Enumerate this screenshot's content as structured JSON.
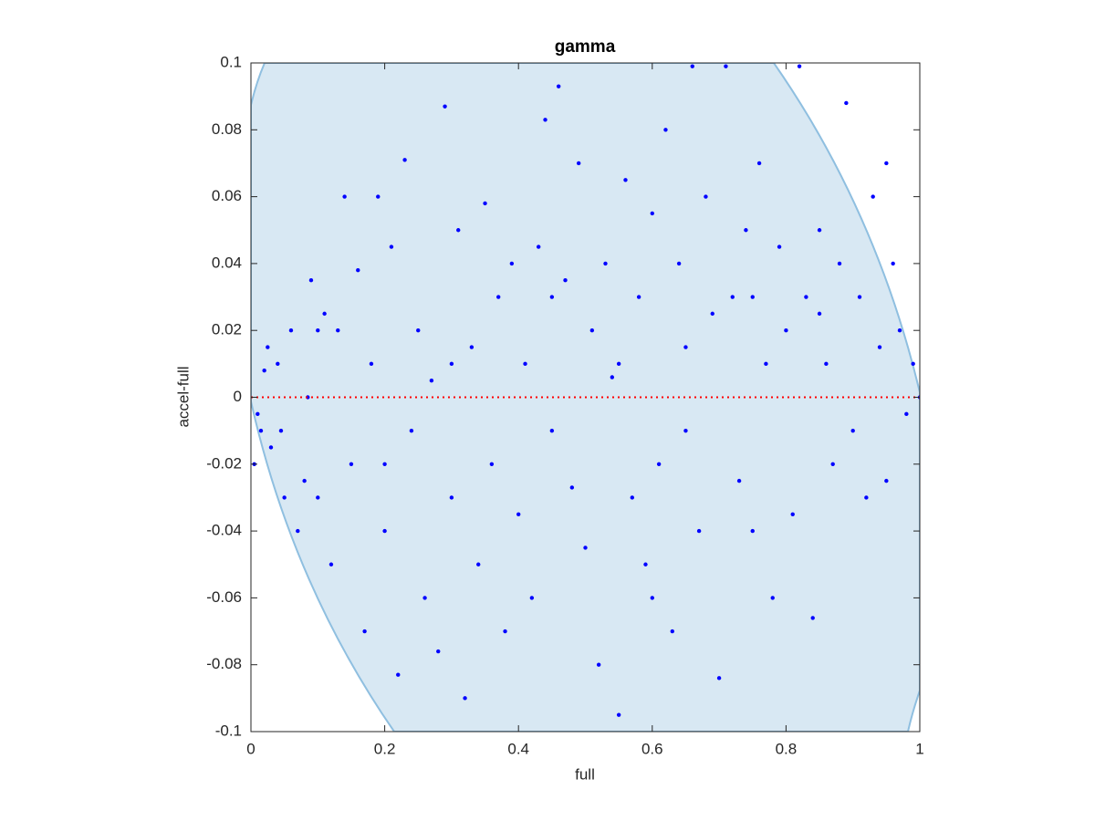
{
  "chart_data": {
    "type": "scatter",
    "title": "gamma",
    "x_label": "full",
    "y_label": "accel-full",
    "color": "#0000ff",
    "hline": 0,
    "hline_color": "#ff0000",
    "region_color": "#d8e8f3",
    "region_edge": "#8fbfe0",
    "xlim": [
      0,
      1
    ],
    "ylim": [
      -0.1,
      0.1
    ],
    "xticks": [
      0,
      0.2,
      0.4,
      0.6,
      0.8,
      1
    ],
    "yticks": [
      -0.1,
      -0.08,
      -0.06,
      -0.04,
      -0.02,
      0,
      0.02,
      0.04,
      0.06,
      0.08,
      0.1
    ],
    "x": [
      0.01,
      0.02,
      0.015,
      0.03,
      0.04,
      0.05,
      0.06,
      0.07,
      0.08,
      0.09,
      0.1,
      0.11,
      0.12,
      0.13,
      0.14,
      0.15,
      0.16,
      0.17,
      0.18,
      0.19,
      0.2,
      0.21,
      0.22,
      0.23,
      0.24,
      0.25,
      0.26,
      0.27,
      0.28,
      0.29,
      0.3,
      0.31,
      0.32,
      0.33,
      0.34,
      0.35,
      0.36,
      0.37,
      0.38,
      0.39,
      0.4,
      0.41,
      0.42,
      0.43,
      0.44,
      0.45,
      0.46,
      0.47,
      0.48,
      0.49,
      0.5,
      0.51,
      0.52,
      0.53,
      0.54,
      0.55,
      0.56,
      0.57,
      0.58,
      0.59,
      0.6,
      0.61,
      0.62,
      0.63,
      0.64,
      0.65,
      0.66,
      0.67,
      0.68,
      0.69,
      0.7,
      0.71,
      0.72,
      0.73,
      0.74,
      0.75,
      0.76,
      0.77,
      0.78,
      0.79,
      0.8,
      0.81,
      0.82,
      0.83,
      0.84,
      0.85,
      0.86,
      0.87,
      0.88,
      0.89,
      0.9,
      0.91,
      0.92,
      0.93,
      0.94,
      0.95,
      0.96,
      0.97,
      0.98,
      0.99,
      1.0,
      0.005,
      0.025,
      0.045,
      0.085,
      0.6,
      0.45,
      0.55,
      0.65,
      0.75,
      0.85,
      0.95,
      0.3,
      0.2,
      0.1
    ],
    "values": [
      -0.005,
      0.008,
      -0.01,
      -0.015,
      0.01,
      -0.03,
      0.02,
      -0.04,
      -0.025,
      0.035,
      -0.03,
      0.025,
      -0.05,
      0.02,
      0.06,
      -0.02,
      0.038,
      -0.07,
      0.01,
      0.06,
      -0.04,
      0.045,
      -0.083,
      0.071,
      -0.01,
      0.02,
      -0.06,
      0.005,
      -0.076,
      0.087,
      -0.03,
      0.05,
      -0.09,
      0.015,
      -0.05,
      0.058,
      -0.02,
      0.03,
      -0.07,
      0.04,
      -0.035,
      0.01,
      -0.06,
      0.045,
      0.083,
      -0.01,
      0.093,
      0.035,
      -0.027,
      0.07,
      -0.045,
      0.02,
      -0.08,
      0.04,
      0.006,
      -0.095,
      0.065,
      -0.03,
      0.03,
      -0.05,
      0.055,
      -0.02,
      0.08,
      -0.07,
      0.04,
      0.015,
      0.099,
      -0.04,
      0.06,
      0.025,
      -0.084,
      0.099,
      0.03,
      -0.025,
      0.05,
      -0.04,
      0.07,
      0.01,
      -0.06,
      0.045,
      0.02,
      -0.035,
      0.099,
      0.03,
      -0.066,
      0.05,
      0.01,
      -0.02,
      0.04,
      0.088,
      -0.01,
      0.03,
      -0.03,
      0.06,
      0.015,
      -0.025,
      0.04,
      0.02,
      -0.005,
      0.01,
      0.0,
      -0.02,
      0.015,
      -0.01,
      0.0,
      -0.06,
      0.03,
      0.01,
      -0.01,
      0.03,
      0.025,
      0.07,
      0.01,
      -0.02,
      0.02
    ]
  }
}
